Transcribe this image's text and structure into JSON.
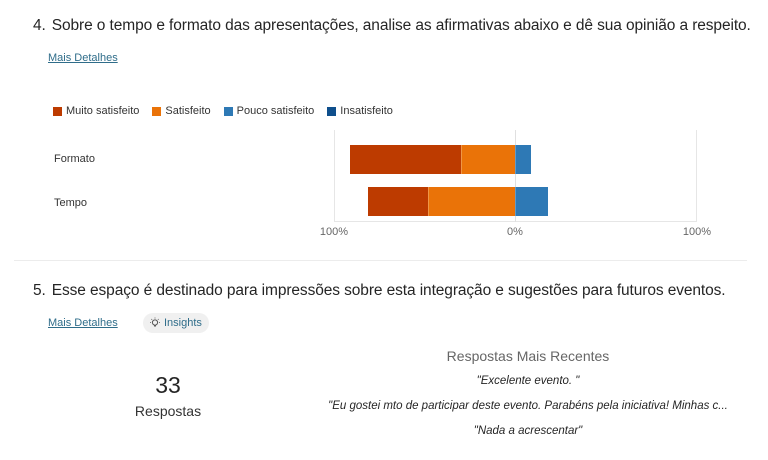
{
  "q4": {
    "number": "4.",
    "title": "Sobre o tempo e formato das apresentações, analise as afirmativas abaixo e dê sua opinião a respeito.",
    "details_link": "Mais Detalhes"
  },
  "q5": {
    "number": "5.",
    "title": "Esse espaço é destinado para impressões sobre esta integração e sugestões para futuros eventos.",
    "details_link": "Mais Detalhes",
    "insights_label": "Insights",
    "response_count": "33",
    "response_label": "Respostas",
    "recent_title": "Respostas Mais Recentes",
    "recent_responses": [
      "\"Excelente evento. \"",
      "\"Eu gostei mto de participar deste evento. Parabéns pela iniciativa! Minhas c...",
      "\"Nada a acrescentar\""
    ]
  },
  "colors": {
    "muito_satisfeito": "#bd3b00",
    "satisfeito": "#ea7308",
    "pouco_satisfeito": "#2e79b5",
    "insatisfeito": "#0f4f8c",
    "link": "#2f6d8a"
  },
  "chart_data": {
    "type": "bar",
    "subtype": "diverging-stacked-horizontal",
    "title": "Sobre o tempo e formato das apresentações",
    "categories": [
      "Formato",
      "Tempo"
    ],
    "series": [
      {
        "name": "Muito satisfeito",
        "side": "negative",
        "color": "#bd3b00",
        "values": [
          61,
          33
        ]
      },
      {
        "name": "Satisfeito",
        "side": "negative",
        "color": "#ea7308",
        "values": [
          30,
          48
        ]
      },
      {
        "name": "Pouco satisfeito",
        "side": "positive",
        "color": "#2e79b5",
        "values": [
          9,
          18
        ]
      },
      {
        "name": "Insatisfeito",
        "side": "positive",
        "color": "#0f4f8c",
        "values": [
          0,
          0
        ]
      }
    ],
    "xlabel": "",
    "ylabel": "",
    "x_ticks": [
      "100%",
      "0%",
      "100%"
    ],
    "xlim": [
      -100,
      100
    ],
    "legend_position": "top",
    "grid": false
  }
}
